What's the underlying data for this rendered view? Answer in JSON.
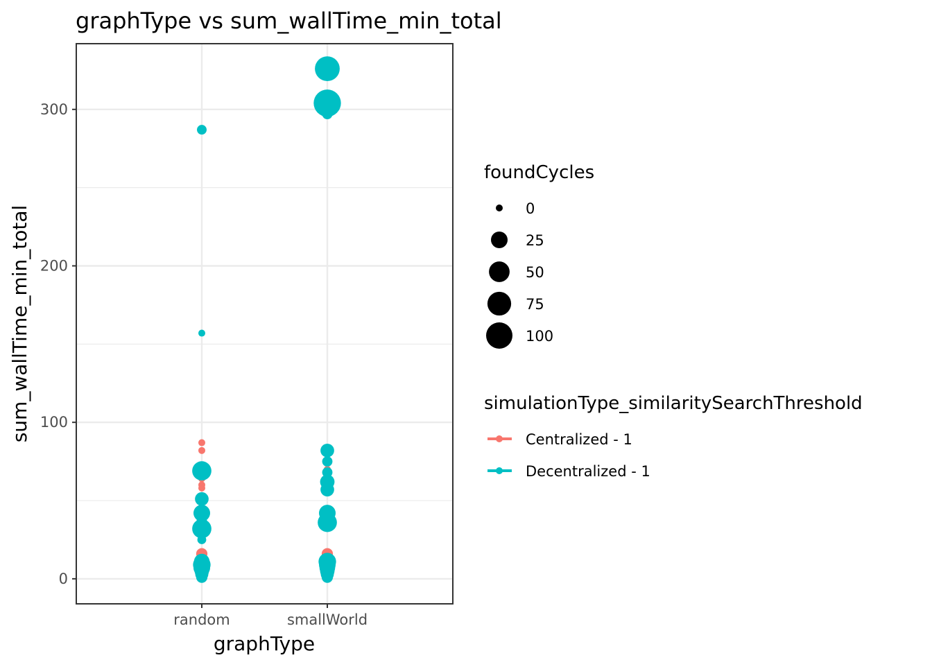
{
  "chart_data": {
    "type": "scatter",
    "title": "graphType  vs  sum_wallTime_min_total",
    "xlabel": "graphType",
    "ylabel": "sum_wallTime_min_total",
    "categories": [
      "random",
      "smallWorld"
    ],
    "ylim": [
      -16,
      342
    ],
    "yticks": [
      0,
      100,
      200,
      300
    ],
    "grid": true,
    "size_legend": {
      "title": "foundCycles",
      "breaks": [
        "0",
        "25",
        "50",
        "75",
        "100"
      ],
      "values": [
        0,
        25,
        50,
        75,
        100
      ]
    },
    "color_legend": {
      "title": "simulationType_similaritySearchThreshold",
      "placement": "right"
    },
    "series": [
      {
        "name": "Centralized - 1",
        "color": "#F8766D",
        "points": [
          {
            "x": "random",
            "y": 87,
            "size": 0
          },
          {
            "x": "random",
            "y": 82,
            "size": 0
          },
          {
            "x": "random",
            "y": 70,
            "size": 0
          },
          {
            "x": "random",
            "y": 64,
            "size": 0
          },
          {
            "x": "random",
            "y": 60,
            "size": 0
          },
          {
            "x": "random",
            "y": 58,
            "size": 0
          },
          {
            "x": "random",
            "y": 16,
            "size": 5
          },
          {
            "x": "random",
            "y": 12,
            "size": 0
          },
          {
            "x": "random",
            "y": 9,
            "size": 0
          },
          {
            "x": "random",
            "y": 5,
            "size": 0
          },
          {
            "x": "random",
            "y": 2,
            "size": 0
          },
          {
            "x": "smallWorld",
            "y": 70,
            "size": 0
          },
          {
            "x": "smallWorld",
            "y": 62,
            "size": 5
          },
          {
            "x": "smallWorld",
            "y": 59,
            "size": 0
          },
          {
            "x": "smallWorld",
            "y": 16,
            "size": 5
          },
          {
            "x": "smallWorld",
            "y": 13,
            "size": 0
          },
          {
            "x": "smallWorld",
            "y": 9,
            "size": 0
          },
          {
            "x": "smallWorld",
            "y": 6,
            "size": 0
          },
          {
            "x": "smallWorld",
            "y": 3,
            "size": 0
          }
        ]
      },
      {
        "name": "Decentralized - 1",
        "color": "#00BFC4",
        "points": [
          {
            "x": "random",
            "y": 287,
            "size": 2
          },
          {
            "x": "random",
            "y": 157,
            "size": 0
          },
          {
            "x": "random",
            "y": 69,
            "size": 40
          },
          {
            "x": "random",
            "y": 51,
            "size": 12
          },
          {
            "x": "random",
            "y": 42,
            "size": 25
          },
          {
            "x": "random",
            "y": 37,
            "size": 3
          },
          {
            "x": "random",
            "y": 32,
            "size": 40
          },
          {
            "x": "random",
            "y": 25,
            "size": 1
          },
          {
            "x": "random",
            "y": 11,
            "size": 20
          },
          {
            "x": "random",
            "y": 9,
            "size": 30
          },
          {
            "x": "random",
            "y": 7,
            "size": 25
          },
          {
            "x": "random",
            "y": 5,
            "size": 15
          },
          {
            "x": "random",
            "y": 3,
            "size": 10
          },
          {
            "x": "random",
            "y": 1,
            "size": 5
          },
          {
            "x": "smallWorld",
            "y": 326,
            "size": 85
          },
          {
            "x": "smallWorld",
            "y": 304,
            "size": 110
          },
          {
            "x": "smallWorld",
            "y": 297,
            "size": 3
          },
          {
            "x": "smallWorld",
            "y": 82,
            "size": 12
          },
          {
            "x": "smallWorld",
            "y": 75,
            "size": 3
          },
          {
            "x": "smallWorld",
            "y": 68,
            "size": 3
          },
          {
            "x": "smallWorld",
            "y": 62,
            "size": 15
          },
          {
            "x": "smallWorld",
            "y": 57,
            "size": 12
          },
          {
            "x": "smallWorld",
            "y": 42,
            "size": 25
          },
          {
            "x": "smallWorld",
            "y": 36,
            "size": 40
          },
          {
            "x": "smallWorld",
            "y": 11,
            "size": 30
          },
          {
            "x": "smallWorld",
            "y": 9,
            "size": 25
          },
          {
            "x": "smallWorld",
            "y": 7,
            "size": 20
          },
          {
            "x": "smallWorld",
            "y": 5,
            "size": 15
          },
          {
            "x": "smallWorld",
            "y": 3,
            "size": 10
          },
          {
            "x": "smallWorld",
            "y": 1,
            "size": 5
          }
        ]
      }
    ]
  }
}
